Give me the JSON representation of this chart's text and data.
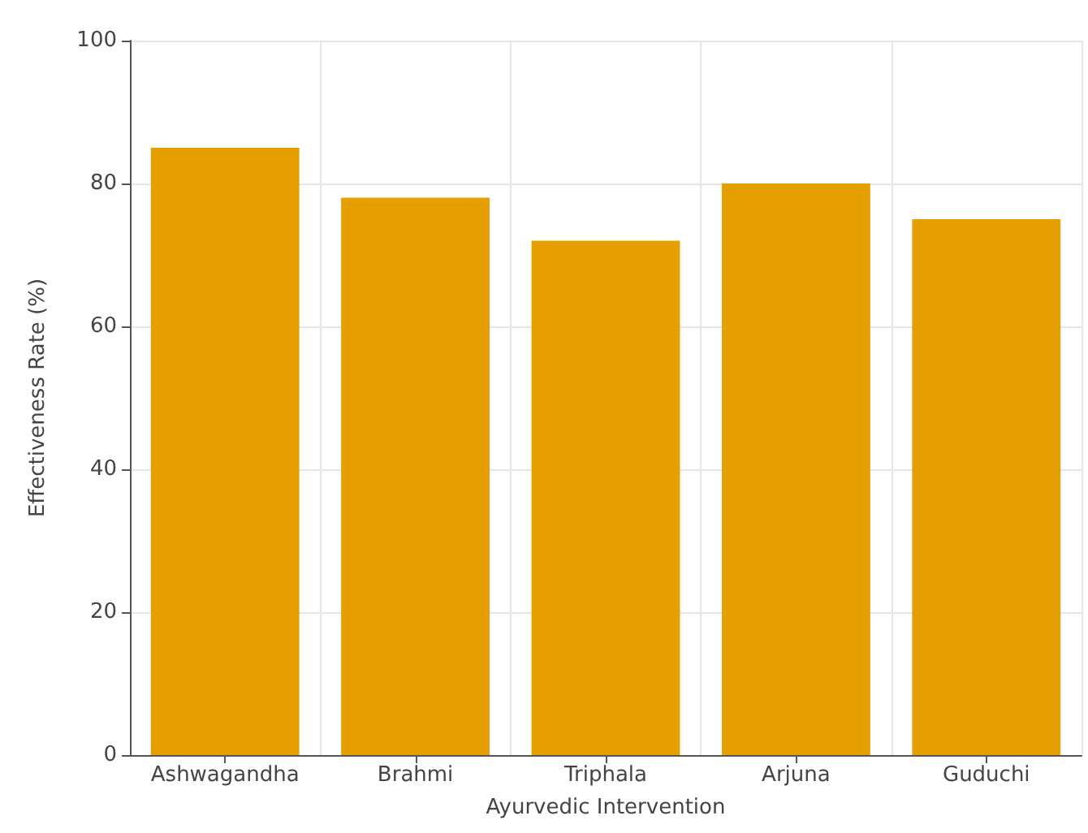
{
  "chart_data": {
    "type": "bar",
    "xlabel": "Ayurvedic Intervention",
    "ylabel": "Effectiveness Rate (%)",
    "categories": [
      "Ashwagandha",
      "Brahmi",
      "Triphala",
      "Arjuna",
      "Guduchi"
    ],
    "values": [
      85,
      78,
      72,
      80,
      75
    ],
    "color": "#e69f00",
    "ylim": [
      0,
      100
    ],
    "yticks": [
      0,
      20,
      40,
      60,
      80,
      100
    ],
    "grid": true
  }
}
